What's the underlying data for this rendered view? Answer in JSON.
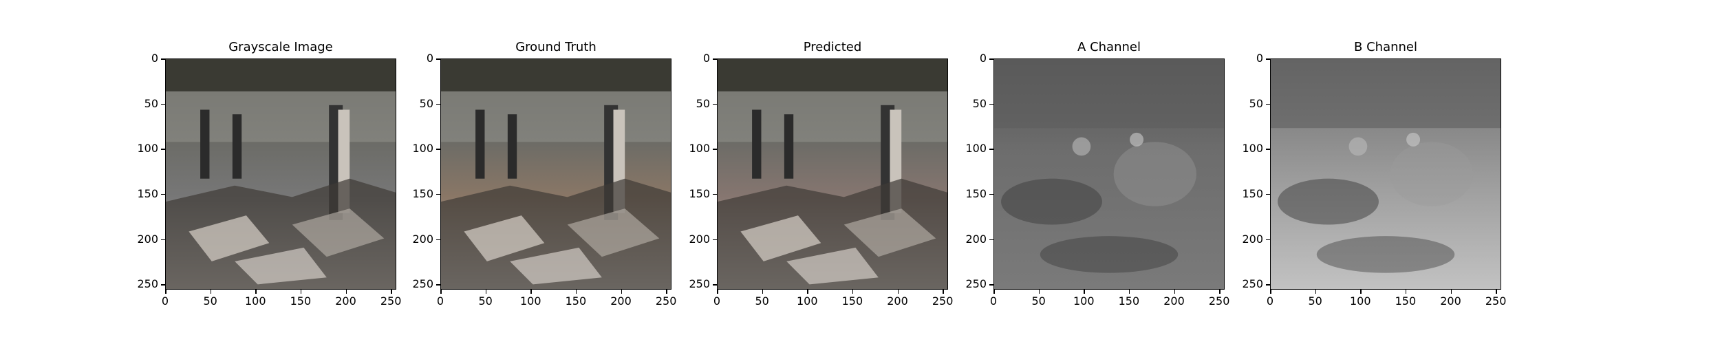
{
  "panels": [
    {
      "title": "Grayscale Image",
      "icon": "photo-rubble-scene",
      "tint": "#777777"
    },
    {
      "title": "Ground Truth",
      "icon": "photo-rubble-scene",
      "tint": "#8a7766"
    },
    {
      "title": "Predicted",
      "icon": "photo-rubble-scene",
      "tint": "#867670"
    },
    {
      "title": "A Channel",
      "icon": "channel-map",
      "tint": "#6a6a6a"
    },
    {
      "title": "B Channel",
      "icon": "channel-map",
      "tint": "#8f8f8f"
    }
  ],
  "axes": {
    "x_ticks": [
      "0",
      "50",
      "100",
      "150",
      "200",
      "250"
    ],
    "y_ticks": [
      "0",
      "50",
      "100",
      "150",
      "200",
      "250"
    ],
    "range": [
      0,
      256
    ]
  }
}
